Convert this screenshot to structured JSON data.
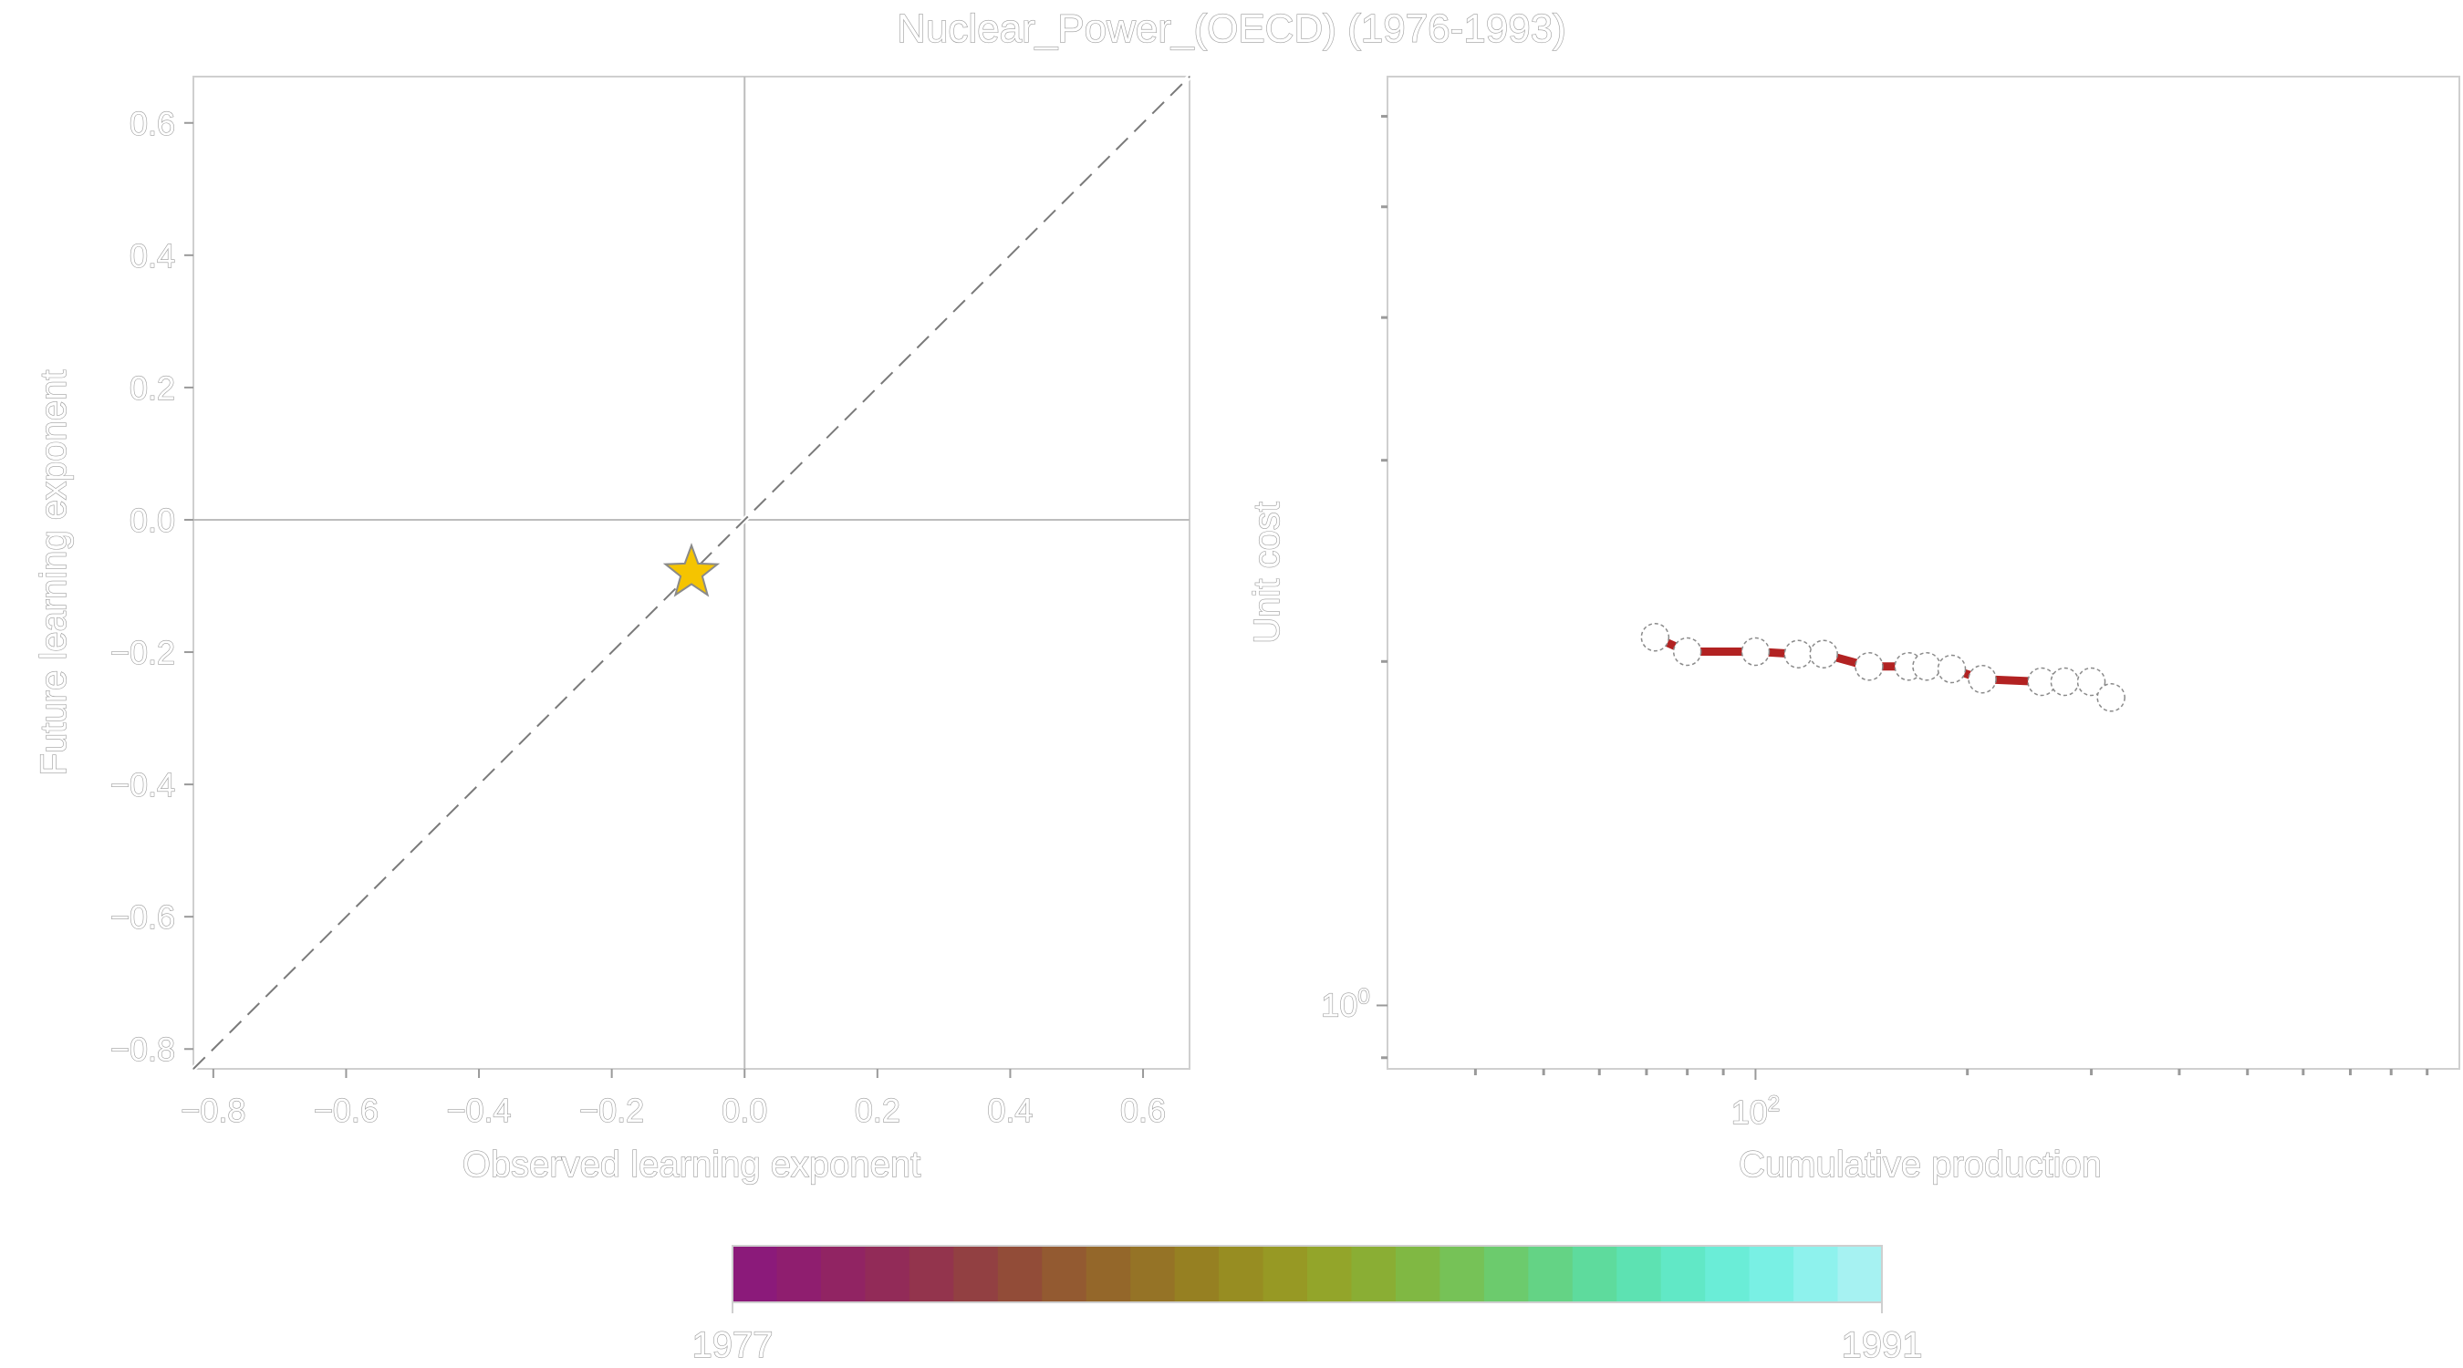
{
  "figure": {
    "title": "Nuclear_Power_(OECD) (1976-1993)"
  },
  "chart_data": [
    {
      "type": "scatter",
      "panel": "left",
      "xlabel": "Observed learning exponent",
      "ylabel": "Future learning exponent",
      "xlim": [
        -0.83,
        0.67
      ],
      "ylim": [
        -0.83,
        0.67
      ],
      "xticks": [
        -0.8,
        -0.6,
        -0.4,
        -0.2,
        0.0,
        0.2,
        0.4,
        0.6
      ],
      "yticks": [
        -0.8,
        -0.6,
        -0.4,
        -0.2,
        0.0,
        0.2,
        0.4,
        0.6
      ],
      "tick_labels": [
        "−0.8",
        "−0.6",
        "−0.4",
        "−0.2",
        "0.0",
        "0.2",
        "0.4",
        "0.6"
      ],
      "reference_lines": {
        "horizontal_y": 0.0,
        "vertical_x": 0.0,
        "diagonal": "y = x (dashed)"
      },
      "points": [
        {
          "x": -0.08,
          "y": -0.08,
          "marker": "star",
          "color": "#f5c400"
        }
      ],
      "grid": false
    },
    {
      "type": "line",
      "panel": "right",
      "xlabel": "Cumulative production",
      "ylabel": "Unit cost",
      "xscale": "log",
      "yscale": "log",
      "xlim": [
        30,
        1000
      ],
      "ylim": [
        0.88,
        6.5
      ],
      "xtick_label": "10^2",
      "ytick_label": "10^0",
      "series": [
        {
          "line_color": "#b22222",
          "marker": "open-circle",
          "x": [
            72,
            80,
            100,
            115,
            125,
            145,
            165,
            175,
            190,
            210,
            255,
            275,
            300,
            320
          ],
          "y": [
            2.1,
            2.04,
            2.04,
            2.03,
            2.03,
            1.98,
            1.98,
            1.98,
            1.97,
            1.93,
            1.92,
            1.92,
            1.92,
            1.86
          ]
        }
      ],
      "grid": false
    }
  ],
  "colorbar": {
    "label_min": "1977",
    "label_max": "1991",
    "colors": [
      "#8b1a7a",
      "#8f1e6f",
      "#912463",
      "#922b58",
      "#93344d",
      "#924042",
      "#924c38",
      "#935a31",
      "#94672a",
      "#957326",
      "#968022",
      "#978d22",
      "#979924",
      "#93a52a",
      "#8aae34",
      "#80b843",
      "#76c257",
      "#6ccb6d",
      "#64d385",
      "#5edb9d",
      "#5de2b2",
      "#61e8c6",
      "#6aedd7",
      "#79f0e4",
      "#8ef2ed",
      "#a6f2f2"
    ]
  }
}
